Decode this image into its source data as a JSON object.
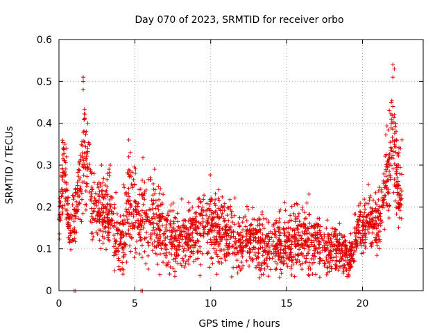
{
  "chart_data": {
    "type": "scatter",
    "title": "Day 070 of 2023, SRMTID for receiver orbo",
    "xlabel": "GPS time / hours",
    "ylabel": "SRMTID / TECUs",
    "xlim": [
      0,
      24
    ],
    "ylim": [
      0,
      0.6
    ],
    "xticks": [
      0,
      5,
      10,
      15,
      20
    ],
    "xtick_labels": [
      "0",
      "5",
      "10",
      "15",
      "20"
    ],
    "yticks": [
      0,
      0.1,
      0.2,
      0.3,
      0.4,
      0.5,
      0.6
    ],
    "ytick_labels": [
      "0",
      "0.1",
      "0.2",
      "0.3",
      "0.4",
      "0.5",
      "0.6"
    ],
    "grid": true,
    "marker": "plus",
    "color": "#e00000",
    "series": [
      {
        "name": "SRMTID",
        "x_range": [
          0,
          22.6
        ],
        "profile": [
          {
            "x": 0.0,
            "y": 0.17,
            "spread": 0.04
          },
          {
            "x": 0.3,
            "y": 0.3,
            "spread": 0.06
          },
          {
            "x": 0.7,
            "y": 0.14,
            "spread": 0.04
          },
          {
            "x": 1.2,
            "y": 0.2,
            "spread": 0.05
          },
          {
            "x": 1.7,
            "y": 0.33,
            "spread": 0.1
          },
          {
            "x": 2.2,
            "y": 0.21,
            "spread": 0.06
          },
          {
            "x": 3.3,
            "y": 0.19,
            "spread": 0.07
          },
          {
            "x": 4.0,
            "y": 0.1,
            "spread": 0.05
          },
          {
            "x": 4.6,
            "y": 0.2,
            "spread": 0.08
          },
          {
            "x": 6.0,
            "y": 0.17,
            "spread": 0.07
          },
          {
            "x": 8.0,
            "y": 0.11,
            "spread": 0.05
          },
          {
            "x": 9.5,
            "y": 0.16,
            "spread": 0.06
          },
          {
            "x": 12.0,
            "y": 0.12,
            "spread": 0.05
          },
          {
            "x": 14.0,
            "y": 0.11,
            "spread": 0.05
          },
          {
            "x": 16.0,
            "y": 0.13,
            "spread": 0.06
          },
          {
            "x": 18.0,
            "y": 0.1,
            "spread": 0.04
          },
          {
            "x": 19.2,
            "y": 0.08,
            "spread": 0.03
          },
          {
            "x": 19.8,
            "y": 0.16,
            "spread": 0.04
          },
          {
            "x": 21.0,
            "y": 0.16,
            "spread": 0.05
          },
          {
            "x": 21.8,
            "y": 0.3,
            "spread": 0.09
          },
          {
            "x": 22.0,
            "y": 0.4,
            "spread": 0.09
          },
          {
            "x": 22.3,
            "y": 0.25,
            "spread": 0.07
          },
          {
            "x": 22.6,
            "y": 0.22,
            "spread": 0.05
          }
        ],
        "notable_points": [
          {
            "x": 1.6,
            "y": 0.51
          },
          {
            "x": 1.6,
            "y": 0.5
          },
          {
            "x": 1.6,
            "y": 0.48
          },
          {
            "x": 1.7,
            "y": 0.41
          },
          {
            "x": 1.9,
            "y": 0.4
          },
          {
            "x": 1.8,
            "y": 0.38
          },
          {
            "x": 0.4,
            "y": 0.35
          },
          {
            "x": 0.5,
            "y": 0.34
          },
          {
            "x": 0.5,
            "y": 0.32
          },
          {
            "x": 3.3,
            "y": 0.29
          },
          {
            "x": 3.2,
            "y": 0.28
          },
          {
            "x": 4.6,
            "y": 0.36
          },
          {
            "x": 4.7,
            "y": 0.33
          },
          {
            "x": 4.6,
            "y": 0.32
          },
          {
            "x": 6.3,
            "y": 0.29
          },
          {
            "x": 22.0,
            "y": 0.54
          },
          {
            "x": 22.1,
            "y": 0.53
          },
          {
            "x": 22.0,
            "y": 0.51
          },
          {
            "x": 21.9,
            "y": 0.45
          },
          {
            "x": 22.0,
            "y": 0.44
          },
          {
            "x": 22.1,
            "y": 0.42
          },
          {
            "x": 22.6,
            "y": 0.36
          },
          {
            "x": 22.5,
            "y": 0.34
          },
          {
            "x": 1.0,
            "y": 0.0
          },
          {
            "x": 1.1,
            "y": 0.0
          },
          {
            "x": 5.4,
            "y": 0.0
          },
          {
            "x": 5.5,
            "y": 0.0
          }
        ]
      }
    ]
  }
}
